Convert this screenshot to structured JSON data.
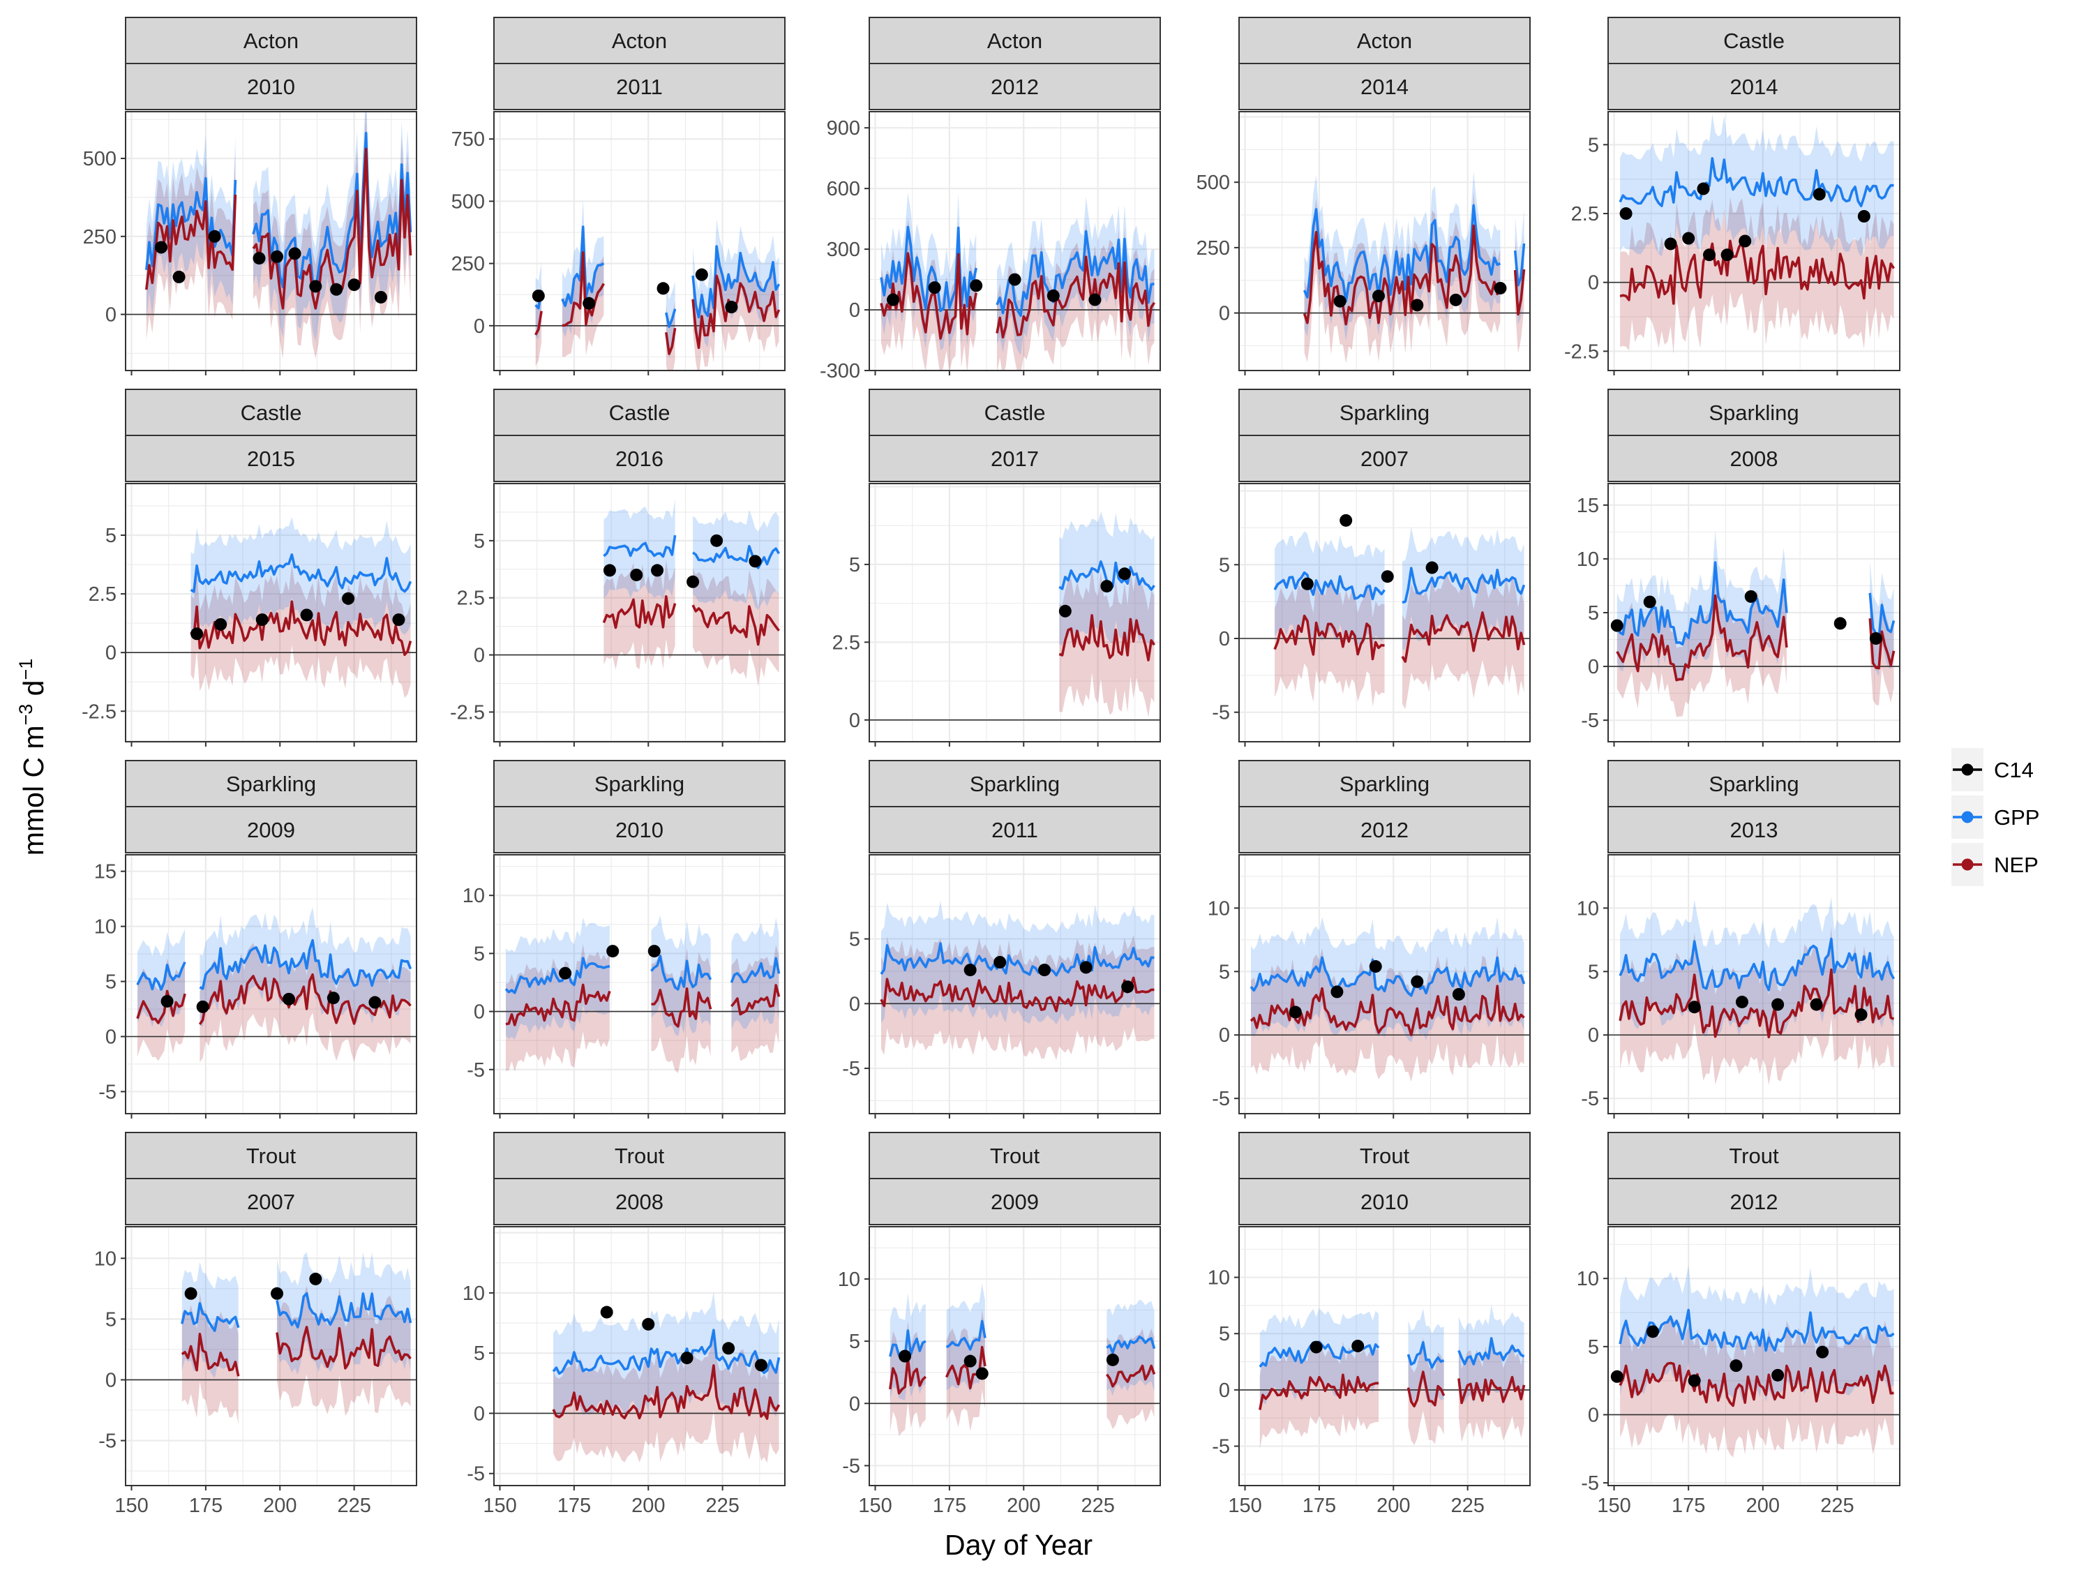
{
  "figure": {
    "xlabel": "Day of Year",
    "ylabel_main": "mmol C m",
    "ylabel_sup1": "−3",
    "ylabel_mid": " d",
    "ylabel_sup2": "−1"
  },
  "legend": {
    "position": "right",
    "items": [
      {
        "label": "C14",
        "color": "#000000",
        "kind": "point"
      },
      {
        "label": "GPP",
        "color": "#1E7EF0",
        "kind": "line"
      },
      {
        "label": "NEP",
        "color": "#A0141E",
        "kind": "line"
      }
    ]
  },
  "colors": {
    "gpp": "#1E7EF0",
    "nep": "#A0141E",
    "c14": "#000000",
    "strip": "#D6D6D6"
  },
  "chart_data": [
    {
      "lake": "Acton",
      "year": "2010",
      "type": "line",
      "xlim": [
        148,
        246
      ],
      "ylim": [
        -180,
        650
      ],
      "yticks": [
        0,
        250,
        500
      ],
      "xticks": [
        150,
        175,
        200,
        225
      ],
      "show_xticks": false,
      "start": 155,
      "end": 244,
      "gaps": [
        [
          186,
          190
        ]
      ],
      "gpp_base": 240,
      "gpp_amp": 180,
      "nep_offset": 60,
      "band": 140,
      "c14": [
        [
          160,
          215
        ],
        [
          166,
          120
        ],
        [
          178,
          250
        ],
        [
          193,
          180
        ],
        [
          199,
          185
        ],
        [
          205,
          195
        ],
        [
          212,
          90
        ],
        [
          219,
          80
        ],
        [
          225,
          95
        ],
        [
          234,
          55
        ]
      ]
    },
    {
      "lake": "Acton",
      "year": "2011",
      "type": "line",
      "xlim": [
        148,
        246
      ],
      "ylim": [
        -180,
        860
      ],
      "yticks": [
        0,
        250,
        500,
        750
      ],
      "xticks": [
        150,
        175,
        200,
        225
      ],
      "show_xticks": false,
      "start": 162,
      "end": 244,
      "gaps": [
        [
          165,
          170
        ],
        [
          186,
          205
        ],
        [
          210,
          214
        ]
      ],
      "gpp_base": 120,
      "gpp_amp": 150,
      "nep_offset": 100,
      "band": 110,
      "c14": [
        [
          163,
          120
        ],
        [
          180,
          90
        ],
        [
          205,
          150
        ],
        [
          218,
          205
        ],
        [
          228,
          75
        ]
      ]
    },
    {
      "lake": "Acton",
      "year": "2012",
      "type": "line",
      "xlim": [
        148,
        246
      ],
      "ylim": [
        -300,
        980
      ],
      "yticks": [
        -300,
        0,
        300,
        600,
        900
      ],
      "xticks": [
        150,
        175,
        200,
        225
      ],
      "show_xticks": false,
      "start": 152,
      "end": 244,
      "gaps": [
        [
          185,
          190
        ]
      ],
      "gpp_base": 150,
      "gpp_amp": 220,
      "nep_offset": 120,
      "band": 170,
      "c14": [
        [
          156,
          50
        ],
        [
          170,
          110
        ],
        [
          184,
          120
        ],
        [
          197,
          150
        ],
        [
          210,
          70
        ],
        [
          224,
          50
        ]
      ]
    },
    {
      "lake": "Acton",
      "year": "2014",
      "type": "line",
      "xlim": [
        148,
        246
      ],
      "ylim": [
        -220,
        770
      ],
      "yticks": [
        0,
        250,
        500
      ],
      "xticks": [
        150,
        175,
        200,
        225
      ],
      "show_xticks": false,
      "start": 170,
      "end": 244,
      "gaps": [
        [
          237,
          240
        ]
      ],
      "gpp_base": 170,
      "gpp_amp": 170,
      "nep_offset": 90,
      "band": 130,
      "c14": [
        [
          182,
          45
        ],
        [
          195,
          65
        ],
        [
          208,
          30
        ],
        [
          221,
          50
        ],
        [
          236,
          95
        ]
      ]
    },
    {
      "lake": "Castle",
      "year": "2014",
      "type": "line",
      "xlim": [
        148,
        246
      ],
      "ylim": [
        -3.2,
        6.2
      ],
      "yticks": [
        -2.5,
        0,
        2.5,
        5
      ],
      "xticks": [
        150,
        175,
        200,
        225
      ],
      "show_xticks": false,
      "start": 152,
      "end": 244,
      "gaps": [],
      "gpp_base": 3.4,
      "gpp_amp": 0.6,
      "nep_offset": 3.0,
      "band": 1.6,
      "c14": [
        [
          154,
          2.5
        ],
        [
          169,
          1.4
        ],
        [
          175,
          1.6
        ],
        [
          180,
          3.4
        ],
        [
          182,
          1.0
        ],
        [
          188,
          1.0
        ],
        [
          194,
          1.5
        ],
        [
          219,
          3.2
        ],
        [
          234,
          2.4
        ]
      ]
    },
    {
      "lake": "Castle",
      "year": "2015",
      "type": "line",
      "xlim": [
        148,
        246
      ],
      "ylim": [
        -3.8,
        7.2
      ],
      "yticks": [
        -2.5,
        0,
        2.5,
        5
      ],
      "xticks": [
        150,
        175,
        200,
        225
      ],
      "show_xticks": false,
      "start": 170,
      "end": 244,
      "gaps": [],
      "gpp_base": 3.2,
      "gpp_amp": 0.6,
      "nep_offset": 2.3,
      "band": 1.6,
      "c14": [
        [
          172,
          0.8
        ],
        [
          180,
          1.2
        ],
        [
          194,
          1.4
        ],
        [
          209,
          1.6
        ],
        [
          223,
          2.3
        ],
        [
          240,
          1.4
        ]
      ]
    },
    {
      "lake": "Castle",
      "year": "2016",
      "type": "line",
      "xlim": [
        148,
        246
      ],
      "ylim": [
        -3.8,
        7.5
      ],
      "yticks": [
        -2.5,
        0,
        2.5,
        5
      ],
      "xticks": [
        150,
        175,
        200,
        225
      ],
      "show_xticks": false,
      "start": 185,
      "end": 244,
      "gaps": [
        [
          210,
          214
        ]
      ],
      "gpp_base": 4.4,
      "gpp_amp": 0.6,
      "nep_offset": 2.8,
      "band": 1.6,
      "c14": [
        [
          187,
          3.7
        ],
        [
          196,
          3.5
        ],
        [
          203,
          3.7
        ],
        [
          215,
          3.2
        ],
        [
          223,
          5.0
        ],
        [
          236,
          4.1
        ]
      ]
    },
    {
      "lake": "Castle",
      "year": "2017",
      "type": "line",
      "xlim": [
        148,
        246
      ],
      "ylim": [
        -0.7,
        7.6
      ],
      "yticks": [
        0,
        2.5,
        5
      ],
      "xticks": [
        150,
        175,
        200,
        225
      ],
      "show_xticks": false,
      "start": 212,
      "end": 244,
      "gaps": [],
      "gpp_base": 4.4,
      "gpp_amp": 0.4,
      "nep_offset": 2.0,
      "band": 1.6,
      "c14": [
        [
          214,
          3.5
        ],
        [
          228,
          4.3
        ],
        [
          234,
          4.7
        ]
      ]
    },
    {
      "lake": "Sparkling",
      "year": "2007",
      "type": "line",
      "xlim": [
        148,
        246
      ],
      "ylim": [
        -7,
        10.5
      ],
      "yticks": [
        -5,
        0,
        5
      ],
      "xticks": [
        150,
        175,
        200,
        225
      ],
      "show_xticks": false,
      "start": 160,
      "end": 244,
      "gaps": [
        [
          198,
          202
        ]
      ],
      "gpp_base": 3.5,
      "gpp_amp": 1.0,
      "nep_offset": 3.3,
      "band": 2.8,
      "c14": [
        [
          171,
          3.7
        ],
        [
          184,
          8.0
        ],
        [
          198,
          4.2
        ],
        [
          213,
          4.8
        ]
      ]
    },
    {
      "lake": "Sparkling",
      "year": "2008",
      "type": "line",
      "xlim": [
        148,
        246
      ],
      "ylim": [
        -7,
        17
      ],
      "yticks": [
        -5,
        0,
        5,
        10,
        15
      ],
      "xticks": [
        150,
        175,
        200,
        225
      ],
      "show_xticks": false,
      "start": 151,
      "end": 244,
      "gaps": [
        [
          209,
          229
        ],
        [
          231,
          235
        ]
      ],
      "gpp_base": 5,
      "gpp_amp": 3,
      "nep_offset": 2.8,
      "band": 3,
      "c14": [
        [
          151,
          3.8
        ],
        [
          162,
          6.0
        ],
        [
          196,
          6.5
        ],
        [
          226,
          4.0
        ],
        [
          238,
          2.6
        ]
      ]
    },
    {
      "lake": "Sparkling",
      "year": "2009",
      "type": "line",
      "xlim": [
        148,
        246
      ],
      "ylim": [
        -7,
        16.5
      ],
      "yticks": [
        -5,
        0,
        5,
        10,
        15
      ],
      "xticks": [
        150,
        175,
        200,
        225
      ],
      "show_xticks": false,
      "start": 152,
      "end": 244,
      "gaps": [
        [
          169,
          172
        ]
      ],
      "gpp_base": 6,
      "gpp_amp": 1.8,
      "nep_offset": 3.0,
      "band": 3,
      "c14": [
        [
          162,
          3.2
        ],
        [
          174,
          2.7
        ],
        [
          203,
          3.4
        ],
        [
          218,
          3.5
        ],
        [
          232,
          3.1
        ]
      ]
    },
    {
      "lake": "Sparkling",
      "year": "2010",
      "type": "line",
      "xlim": [
        148,
        246
      ],
      "ylim": [
        -8.8,
        13.5
      ],
      "yticks": [
        -5,
        0,
        5,
        10
      ],
      "xticks": [
        150,
        175,
        200,
        225
      ],
      "show_xticks": false,
      "start": 152,
      "end": 244,
      "gaps": [
        [
          188,
          200
        ],
        [
          222,
          227
        ]
      ],
      "gpp_base": 3,
      "gpp_amp": 1.2,
      "nep_offset": 2.6,
      "band": 3.5,
      "c14": [
        [
          172,
          3.3
        ],
        [
          188,
          5.2
        ],
        [
          202,
          5.2
        ]
      ]
    },
    {
      "lake": "Sparkling",
      "year": "2011",
      "type": "line",
      "xlim": [
        148,
        246
      ],
      "ylim": [
        -8.5,
        11.5
      ],
      "yticks": [
        -5,
        0,
        5
      ],
      "xticks": [
        150,
        175,
        200,
        225
      ],
      "show_xticks": false,
      "start": 152,
      "end": 244,
      "gaps": [],
      "gpp_base": 3,
      "gpp_amp": 1.0,
      "nep_offset": 2.4,
      "band": 3.3,
      "c14": [
        [
          182,
          2.6
        ],
        [
          192,
          3.2
        ],
        [
          207,
          2.6
        ],
        [
          221,
          2.8
        ],
        [
          235,
          1.3
        ]
      ]
    },
    {
      "lake": "Sparkling",
      "year": "2012",
      "type": "line",
      "xlim": [
        148,
        246
      ],
      "ylim": [
        -6.2,
        14.2
      ],
      "yticks": [
        -5,
        0,
        5,
        10
      ],
      "xticks": [
        150,
        175,
        200,
        225
      ],
      "show_xticks": false,
      "start": 152,
      "end": 244,
      "gaps": [],
      "gpp_base": 4.3,
      "gpp_amp": 1.3,
      "nep_offset": 2.8,
      "band": 3.2,
      "c14": [
        [
          167,
          1.8
        ],
        [
          181,
          3.4
        ],
        [
          194,
          5.4
        ],
        [
          208,
          4.2
        ],
        [
          222,
          3.2
        ]
      ]
    },
    {
      "lake": "Sparkling",
      "year": "2013",
      "type": "line",
      "xlim": [
        148,
        246
      ],
      "ylim": [
        -6.2,
        14.2
      ],
      "yticks": [
        -5,
        0,
        5,
        10
      ],
      "xticks": [
        150,
        175,
        200,
        225
      ],
      "show_xticks": false,
      "start": 152,
      "end": 244,
      "gaps": [],
      "gpp_base": 5,
      "gpp_amp": 1.8,
      "nep_offset": 3.2,
      "band": 3.3,
      "c14": [
        [
          177,
          2.2
        ],
        [
          193,
          2.6
        ],
        [
          205,
          2.4
        ],
        [
          218,
          2.4
        ],
        [
          233,
          1.6
        ]
      ]
    },
    {
      "lake": "Trout",
      "year": "2007",
      "type": "line",
      "xlim": [
        148,
        246
      ],
      "ylim": [
        -8.7,
        12.6
      ],
      "yticks": [
        -5,
        0,
        5,
        10
      ],
      "xticks": [
        150,
        175,
        200,
        225
      ],
      "show_xticks": true,
      "start": 167,
      "end": 244,
      "gaps": [
        [
          187,
          198
        ]
      ],
      "gpp_base": 5,
      "gpp_amp": 1.3,
      "nep_offset": 3.3,
      "band": 3.4,
      "c14": [
        [
          170,
          7.1
        ],
        [
          199,
          7.1
        ],
        [
          212,
          8.3
        ]
      ]
    },
    {
      "lake": "Trout",
      "year": "2008",
      "type": "line",
      "xlim": [
        148,
        246
      ],
      "ylim": [
        -6,
        15.5
      ],
      "yticks": [
        -5,
        0,
        5,
        10
      ],
      "xticks": [
        150,
        175,
        200,
        225
      ],
      "show_xticks": true,
      "start": 168,
      "end": 244,
      "gaps": [],
      "gpp_base": 4.3,
      "gpp_amp": 1.3,
      "nep_offset": 3.5,
      "band": 3.2,
      "c14": [
        [
          186,
          8.4
        ],
        [
          200,
          7.4
        ],
        [
          213,
          4.6
        ],
        [
          227,
          5.4
        ],
        [
          238,
          4.0
        ]
      ]
    },
    {
      "lake": "Trout",
      "year": "2009",
      "type": "line",
      "xlim": [
        148,
        246
      ],
      "ylim": [
        -6.6,
        14.2
      ],
      "yticks": [
        -5,
        0,
        5,
        10
      ],
      "xticks": [
        150,
        175,
        200,
        225
      ],
      "show_xticks": true,
      "start": 155,
      "end": 244,
      "gaps": [
        [
          168,
          173
        ],
        [
          188,
          227
        ]
      ],
      "gpp_base": 4.8,
      "gpp_amp": 1.2,
      "nep_offset": 2.5,
      "band": 3.0,
      "c14": [
        [
          160,
          3.8
        ],
        [
          182,
          3.4
        ],
        [
          186,
          2.4
        ],
        [
          230,
          3.5
        ]
      ]
    },
    {
      "lake": "Trout",
      "year": "2010",
      "type": "line",
      "xlim": [
        148,
        246
      ],
      "ylim": [
        -8.5,
        14.5
      ],
      "yticks": [
        -5,
        0,
        5,
        10
      ],
      "xticks": [
        150,
        175,
        200,
        225
      ],
      "show_xticks": true,
      "start": 155,
      "end": 244,
      "gaps": [
        [
          196,
          204
        ],
        [
          218,
          221
        ]
      ],
      "gpp_base": 3,
      "gpp_amp": 1.2,
      "nep_offset": 3.2,
      "band": 3,
      "c14": [
        [
          174,
          3.8
        ],
        [
          188,
          3.9
        ]
      ]
    },
    {
      "lake": "Trout",
      "year": "2012",
      "type": "line",
      "xlim": [
        148,
        246
      ],
      "ylim": [
        -5.2,
        13.8
      ],
      "yticks": [
        -5,
        0,
        5,
        10
      ],
      "xticks": [
        150,
        175,
        200,
        225
      ],
      "show_xticks": true,
      "start": 152,
      "end": 244,
      "gaps": [],
      "gpp_base": 5.8,
      "gpp_amp": 1.3,
      "nep_offset": 3.6,
      "band": 3.3,
      "c14": [
        [
          151,
          2.8
        ],
        [
          163,
          6.1
        ],
        [
          177,
          2.5
        ],
        [
          191,
          3.6
        ],
        [
          205,
          2.9
        ],
        [
          220,
          4.6
        ]
      ]
    }
  ]
}
